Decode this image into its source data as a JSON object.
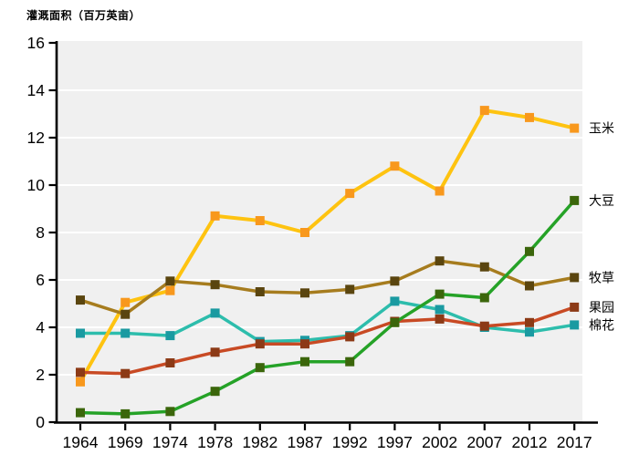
{
  "chart_data": {
    "type": "line",
    "title": "灌溉面积（百万英亩）",
    "categories": [
      "1964",
      "1969",
      "1974",
      "1978",
      "1982",
      "1987",
      "1992",
      "1997",
      "2002",
      "2007",
      "2012",
      "2017"
    ],
    "xlabel": "",
    "ylabel": "灌溉面积（百万英亩）",
    "ylim": [
      0,
      16
    ],
    "yticks": [
      0,
      2,
      4,
      6,
      8,
      10,
      12,
      14,
      16
    ],
    "grid_values": [
      2,
      4,
      6,
      8,
      10,
      12,
      14
    ],
    "grid": "horizontal white gridlines on light gray panel",
    "legend_position": "direct labels at right end of each line",
    "series": [
      {
        "id": "corn",
        "name": "玉米",
        "label": "玉米",
        "line_color": "#FEC310",
        "marker_color": "#F8981D",
        "marker": "square",
        "z": 2,
        "values": [
          1.7,
          5.05,
          5.55,
          8.7,
          8.5,
          8.0,
          9.65,
          10.8,
          9.75,
          13.15,
          12.85,
          12.4
        ]
      },
      {
        "id": "soybean",
        "name": "大豆",
        "label": "大豆",
        "line_color": "#25A227",
        "marker_color": "#3B660B",
        "marker": "square",
        "z": 5,
        "values": [
          0.4,
          0.35,
          0.45,
          1.3,
          2.3,
          2.55,
          2.55,
          4.2,
          5.4,
          5.25,
          7.2,
          9.35
        ]
      },
      {
        "id": "hay",
        "name": "牧草",
        "label": "牧草",
        "line_color": "#A67C1E",
        "marker_color": "#5A450F",
        "marker": "square",
        "z": 4,
        "values": [
          5.15,
          4.55,
          5.95,
          5.8,
          5.5,
          5.45,
          5.6,
          5.95,
          6.8,
          6.55,
          5.75,
          6.1
        ]
      },
      {
        "id": "orchard",
        "name": "果园",
        "label": "果园",
        "line_color": "#C84A24",
        "marker_color": "#8C3A16",
        "marker": "square",
        "z": 3,
        "values": [
          2.1,
          2.05,
          2.5,
          2.95,
          3.3,
          3.3,
          3.6,
          4.25,
          4.35,
          4.05,
          4.2,
          4.85
        ]
      },
      {
        "id": "cotton",
        "name": "棉花",
        "label": "棉花",
        "line_color": "#2DBDAC",
        "marker_color": "#1A9AA1",
        "marker": "square",
        "z": 1,
        "values": [
          3.75,
          3.75,
          3.65,
          4.6,
          3.4,
          3.45,
          3.65,
          5.1,
          4.75,
          4.0,
          3.8,
          4.1
        ]
      }
    ],
    "colors": {
      "background": "#FFFFFF",
      "panel": "#F0F0F0",
      "grid": "#FFFFFF",
      "axis": "#000000",
      "text": "#000000"
    }
  }
}
